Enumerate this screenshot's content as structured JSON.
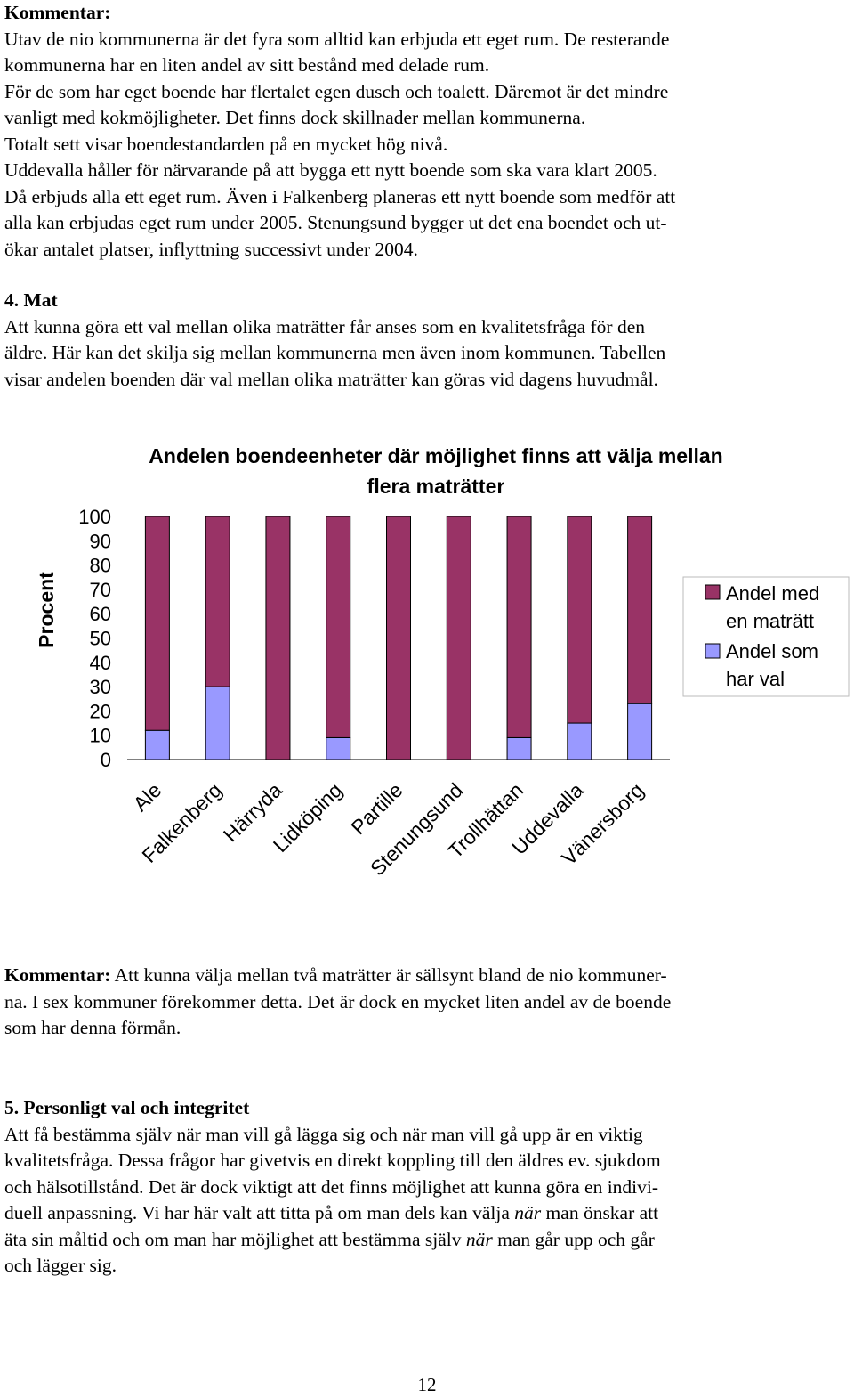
{
  "comment1": {
    "heading": "Kommentar:",
    "lines": [
      "Utav de nio kommunerna är det fyra som alltid kan erbjuda ett eget rum. De resterande",
      "kommunerna har en liten andel av sitt bestånd med delade rum.",
      "För de som har eget boende har flertalet egen dusch och toalett. Däremot är det mindre",
      "vanligt med kokmöjligheter. Det finns dock skillnader mellan kommunerna.",
      "Totalt sett visar boendestandarden på en mycket hög nivå.",
      "Uddevalla håller för närvarande på att bygga ett nytt boende som ska vara klart 2005.",
      "Då erbjuds alla ett eget rum. Även i Falkenberg planeras ett nytt boende som medför att",
      "alla kan erbjudas eget rum under 2005. Stenungsund bygger ut det ena boendet och ut-",
      "ökar antalet platser, inflyttning successivt under 2004."
    ]
  },
  "section4": {
    "heading": "4. Mat",
    "lines": [
      "Att kunna göra ett val mellan olika maträtter får anses som en kvalitetsfråga för den",
      "äldre. Här kan det skilja sig mellan kommunerna men även inom kommunen. Tabellen",
      "visar andelen boenden där val mellan olika maträtter kan göras vid dagens huvudmål."
    ]
  },
  "chart_data": {
    "type": "bar",
    "stacked": true,
    "title": "Andelen boendeenheter där möjlighet finns att välja mellan flera maträtter",
    "title_lines": [
      "Andelen boendeenheter där möjlighet finns att välja mellan",
      "flera maträtter"
    ],
    "ylabel": "Procent",
    "xlabel": "",
    "ylim": [
      0,
      100
    ],
    "yticks": [
      "100",
      "90",
      "80",
      "70",
      "60",
      "50",
      "40",
      "30",
      "20",
      "10",
      "0"
    ],
    "ytick_values": [
      100,
      90,
      80,
      70,
      60,
      50,
      40,
      30,
      20,
      10,
      0
    ],
    "categories": [
      "Ale",
      "Falkenberg",
      "Härryda",
      "Lidköping",
      "Partille",
      "Stenungsund",
      "Trollhättan",
      "Uddevalla",
      "Vänersborg"
    ],
    "series": [
      {
        "name": "Andel som har val",
        "color": "#9999ff",
        "values": [
          12,
          30,
          0,
          9,
          0,
          0,
          9,
          15,
          23
        ]
      },
      {
        "name": "Andel med en maträtt",
        "color": "#993366",
        "values": [
          88,
          70,
          100,
          91,
          100,
          100,
          91,
          85,
          77
        ]
      }
    ],
    "legend": {
      "position": "right",
      "entries": [
        {
          "lines": [
            "Andel med",
            "en maträtt"
          ],
          "color": "#993366"
        },
        {
          "lines": [
            "Andel som",
            "har val"
          ],
          "color": "#9999ff"
        }
      ]
    },
    "grid": false
  },
  "comment2": {
    "heading": "Kommentar:",
    "first_line_rest": " Att kunna välja mellan två maträtter är sällsynt bland de nio kommuner-",
    "lines": [
      "na. I sex kommuner förekommer detta. Det är dock en mycket liten andel av de boende",
      "som har denna förmån."
    ]
  },
  "section5": {
    "heading": "5. Personligt val och integritet",
    "lines": [
      "Att få bestämma själv när man vill gå lägga sig och när man vill gå upp är en viktig",
      "kvalitetsfråga. Dessa frågor har givetvis en direkt koppling till den äldres ev. sjukdom",
      "och hälsotillstånd. Det är dock viktigt att det finns möjlighet att kunna göra en indivi-",
      "duell anpassning. Vi har här valt att titta på om man dels kan välja "
    ],
    "line4_italic": "när",
    "line4_rest": " man önskar att",
    "line5_start": "äta sin måltid och om man har möjlighet att bestämma själv ",
    "line5_italic": "när",
    "line5_rest": " man går upp och går",
    "line6": "och lägger sig."
  },
  "page_number": "12"
}
